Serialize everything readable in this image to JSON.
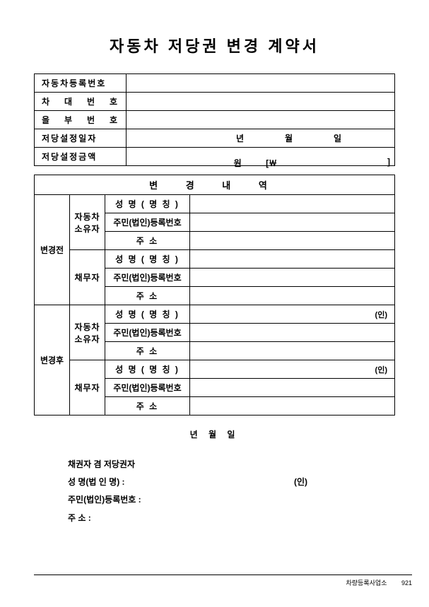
{
  "title": "자동차 저당권 변경 계약서",
  "info": {
    "reg_no_label": "자동차등록번호",
    "vin_label": "차 대 번 호",
    "eulbu_label": "을 부 번 호",
    "mortgage_date_label": "저당설정일자",
    "mortgage_amount_label": "저당설정금액",
    "year": "년",
    "month": "월",
    "day": "일",
    "won": "원",
    "won_open": "[￦",
    "won_close": "]"
  },
  "change": {
    "header": "변 경 내 역",
    "before": "변경전",
    "after": "변경후",
    "owner": "자동차 소유자",
    "debtor": "채무자",
    "name_label": "성 명 ( 명 칭 )",
    "rrn_label": "주민(법인)등록번호",
    "addr_label": "주       소",
    "seal": "(인)"
  },
  "dateLine": "년   월   일",
  "signatory": {
    "header": "채권자 겸 저당권자",
    "name_label": "성  명(법 인 명) :",
    "rrn_label": "주민(법인)등록번호 :",
    "addr_label": "주          소 :",
    "seal": "(인)"
  },
  "footer": {
    "org": "차량등록사업소",
    "page": "921"
  }
}
